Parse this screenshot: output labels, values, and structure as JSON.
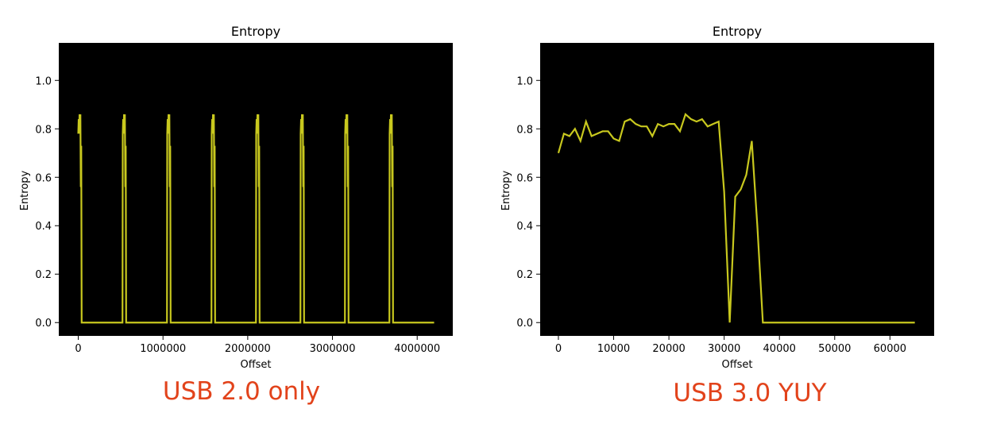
{
  "chart_data": [
    {
      "type": "line",
      "title": "Entropy",
      "xlabel": "Offset",
      "ylabel": "Entropy",
      "xlim": [
        -230000,
        4420000
      ],
      "ylim": [
        -0.055,
        1.155
      ],
      "xticks": [
        0,
        1000000,
        2000000,
        3000000,
        4000000
      ],
      "xtick_labels": [
        "0",
        "1000000",
        "2000000",
        "3000000",
        "4000000"
      ],
      "yticks": [
        0.0,
        0.2,
        0.4,
        0.6,
        0.8,
        1.0
      ],
      "ytick_labels": [
        "0.0",
        "0.2",
        "0.4",
        "0.6",
        "0.8",
        "1.0"
      ],
      "background": "#000000",
      "line_color": "#c8c81e",
      "grid": false,
      "series": [
        {
          "pattern": "periodic bursts",
          "period": 525000,
          "bursts": 8,
          "burst_profile": [
            [
              0,
              0.78
            ],
            [
              5000,
              0.84
            ],
            [
              10000,
              0.79
            ],
            [
              15000,
              0.86
            ],
            [
              20000,
              0.78
            ],
            [
              25000,
              0.86
            ],
            [
              30000,
              0.56
            ],
            [
              35000,
              0.73
            ],
            [
              40000,
              0.0
            ]
          ],
          "baseline": 0.0,
          "x_end": 4200000
        }
      ],
      "caption": "USB 2.0 only"
    },
    {
      "type": "line",
      "title": "Entropy",
      "xlabel": "Offset",
      "ylabel": "Entropy",
      "xlim": [
        -3300,
        68000
      ],
      "ylim": [
        -0.055,
        1.155
      ],
      "xticks": [
        0,
        10000,
        20000,
        30000,
        40000,
        50000,
        60000
      ],
      "xtick_labels": [
        "0",
        "10000",
        "20000",
        "30000",
        "40000",
        "50000",
        "60000"
      ],
      "yticks": [
        0.0,
        0.2,
        0.4,
        0.6,
        0.8,
        1.0
      ],
      "ytick_labels": [
        "0.0",
        "0.2",
        "0.4",
        "0.6",
        "0.8",
        "1.0"
      ],
      "background": "#000000",
      "line_color": "#c8c81e",
      "grid": false,
      "series": [
        {
          "x": [
            0,
            1000,
            2000,
            3000,
            4000,
            5000,
            6000,
            7000,
            8000,
            9000,
            10000,
            11000,
            12000,
            13000,
            14000,
            15000,
            16000,
            17000,
            18000,
            19000,
            20000,
            21000,
            22000,
            23000,
            24000,
            25000,
            26000,
            27000,
            28000,
            29000,
            30000,
            31000,
            32000,
            33000,
            34000,
            35000,
            36000,
            37000,
            38000,
            39000,
            64500
          ],
          "y": [
            0.7,
            0.78,
            0.77,
            0.8,
            0.75,
            0.83,
            0.77,
            0.78,
            0.79,
            0.79,
            0.76,
            0.75,
            0.83,
            0.84,
            0.82,
            0.81,
            0.81,
            0.77,
            0.82,
            0.81,
            0.82,
            0.82,
            0.79,
            0.86,
            0.84,
            0.83,
            0.84,
            0.81,
            0.82,
            0.83,
            0.54,
            0.0,
            0.52,
            0.55,
            0.61,
            0.75,
            0.4,
            0.0,
            0.0,
            0.0,
            0.0
          ]
        }
      ],
      "caption": "USB 3.0 YUY"
    }
  ]
}
